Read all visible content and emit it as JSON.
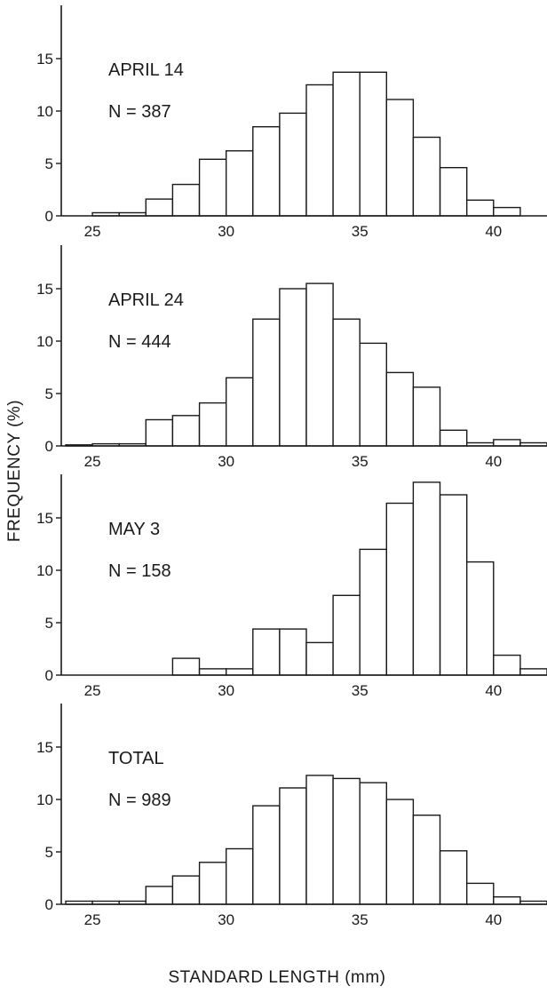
{
  "chart_data": {
    "type": "bar",
    "xlabel": "STANDARD LENGTH (mm)",
    "ylabel": "FREQUENCY (%)",
    "bin_starts": [
      24,
      25,
      26,
      27,
      28,
      29,
      30,
      31,
      32,
      33,
      34,
      35,
      36,
      37,
      38,
      39,
      40,
      41
    ],
    "bin_width": 1,
    "x_ticks": [
      25,
      30,
      35,
      40
    ],
    "xlim": [
      24,
      42
    ],
    "y_ticks": [
      0,
      5,
      10,
      15
    ],
    "ylim": [
      0,
      20
    ],
    "panels": [
      {
        "id": "april-14",
        "title": "APRIL 14",
        "n_label": "N = 387",
        "values": [
          0,
          0.3,
          0.3,
          1.6,
          3.0,
          5.4,
          6.2,
          8.5,
          9.8,
          12.5,
          13.7,
          13.7,
          11.1,
          7.5,
          4.6,
          1.5,
          0.8,
          0
        ]
      },
      {
        "id": "april-24",
        "title": "APRIL 24",
        "n_label": "N = 444",
        "values": [
          0.1,
          0.2,
          0.2,
          2.5,
          2.9,
          4.1,
          6.5,
          12.1,
          15.0,
          15.5,
          12.1,
          9.8,
          7.0,
          5.6,
          1.5,
          0.3,
          0.6,
          0.3
        ]
      },
      {
        "id": "may-3",
        "title": "MAY 3",
        "n_label": "N = 158",
        "values": [
          0,
          0,
          0,
          0,
          1.6,
          0.6,
          0.6,
          4.4,
          4.4,
          3.1,
          7.6,
          12.0,
          16.4,
          18.4,
          17.2,
          10.8,
          1.9,
          0.6
        ]
      },
      {
        "id": "total",
        "title": "TOTAL",
        "n_label": "N = 989",
        "values": [
          0.3,
          0.3,
          0.3,
          1.7,
          2.7,
          4.0,
          5.3,
          9.4,
          11.1,
          12.3,
          12.0,
          11.6,
          10.0,
          8.5,
          5.1,
          2.0,
          0.7,
          0.3
        ]
      }
    ]
  }
}
